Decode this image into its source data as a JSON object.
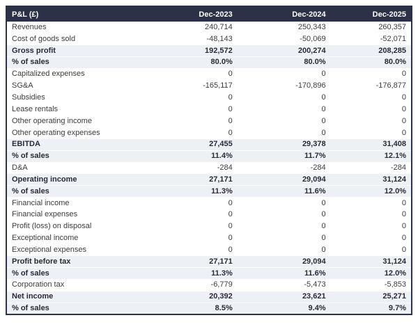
{
  "title": "P&L (£)",
  "colors": {
    "header_bg": "#2d3148",
    "header_text": "#ffffff",
    "row_highlight_bg": "#edf1f6",
    "border": "#2d3148",
    "text": "#3c3c3c",
    "text_bold": "#2b2b33"
  },
  "chart_data": {
    "type": "table",
    "title": "P&L (£)",
    "currency": "£",
    "columns": [
      "P&L (£)",
      "Dec-2023",
      "Dec-2024",
      "Dec-2025"
    ],
    "rows": [
      {
        "label": "Revenues",
        "values": [
          "240,714",
          "250,343",
          "260,357"
        ],
        "bold": false
      },
      {
        "label": "Cost of goods sold",
        "values": [
          "-48,143",
          "-50,069",
          "-52,071"
        ],
        "bold": false
      },
      {
        "label": "Gross profit",
        "values": [
          "192,572",
          "200,274",
          "208,285"
        ],
        "bold": true
      },
      {
        "label": "% of sales",
        "values": [
          "80.0%",
          "80.0%",
          "80.0%"
        ],
        "bold": true
      },
      {
        "label": "Capitalized expenses",
        "values": [
          "0",
          "0",
          "0"
        ],
        "bold": false
      },
      {
        "label": "SG&A",
        "values": [
          "-165,117",
          "-170,896",
          "-176,877"
        ],
        "bold": false
      },
      {
        "label": "Subsidies",
        "values": [
          "0",
          "0",
          "0"
        ],
        "bold": false
      },
      {
        "label": "Lease rentals",
        "values": [
          "0",
          "0",
          "0"
        ],
        "bold": false
      },
      {
        "label": "Other operating income",
        "values": [
          "0",
          "0",
          "0"
        ],
        "bold": false
      },
      {
        "label": "Other operating expenses",
        "values": [
          "0",
          "0",
          "0"
        ],
        "bold": false
      },
      {
        "label": "EBITDA",
        "values": [
          "27,455",
          "29,378",
          "31,408"
        ],
        "bold": true
      },
      {
        "label": "% of sales",
        "values": [
          "11.4%",
          "11.7%",
          "12.1%"
        ],
        "bold": true
      },
      {
        "label": "D&A",
        "values": [
          "-284",
          "-284",
          "-284"
        ],
        "bold": false
      },
      {
        "label": "Operating income",
        "values": [
          "27,171",
          "29,094",
          "31,124"
        ],
        "bold": true
      },
      {
        "label": "% of sales",
        "values": [
          "11.3%",
          "11.6%",
          "12.0%"
        ],
        "bold": true
      },
      {
        "label": "Financial income",
        "values": [
          "0",
          "0",
          "0"
        ],
        "bold": false
      },
      {
        "label": "Financial expenses",
        "values": [
          "0",
          "0",
          "0"
        ],
        "bold": false
      },
      {
        "label": "Profit (loss) on disposal",
        "values": [
          "0",
          "0",
          "0"
        ],
        "bold": false
      },
      {
        "label": "Exceptional income",
        "values": [
          "0",
          "0",
          "0"
        ],
        "bold": false
      },
      {
        "label": "Exceptional expenses",
        "values": [
          "0",
          "0",
          "0"
        ],
        "bold": false
      },
      {
        "label": "Profit before tax",
        "values": [
          "27,171",
          "29,094",
          "31,124"
        ],
        "bold": true
      },
      {
        "label": "% of sales",
        "values": [
          "11.3%",
          "11.6%",
          "12.0%"
        ],
        "bold": true
      },
      {
        "label": "Corporation tax",
        "values": [
          "-6,779",
          "-5,473",
          "-5,853"
        ],
        "bold": false
      },
      {
        "label": "Net income",
        "values": [
          "20,392",
          "23,621",
          "25,271"
        ],
        "bold": true
      },
      {
        "label": "% of sales",
        "values": [
          "8.5%",
          "9.4%",
          "9.7%"
        ],
        "bold": true
      }
    ]
  }
}
